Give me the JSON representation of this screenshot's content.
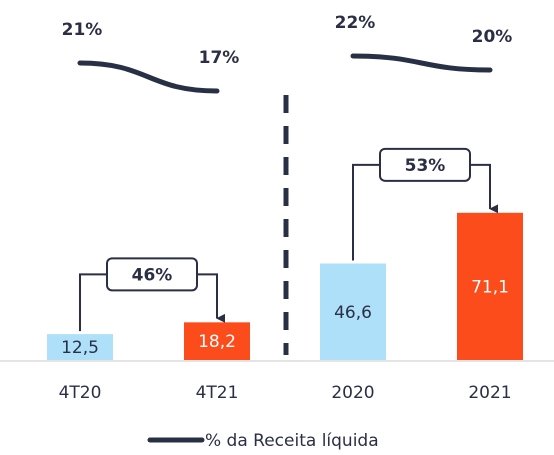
{
  "chart_data": {
    "type": "bar",
    "categories": [
      "4T20",
      "4T21",
      "2020",
      "2021"
    ],
    "ylim": [
      0,
      100
    ],
    "y2lim": [
      10,
      25
    ],
    "series": [
      {
        "type": "bar",
        "colors": [
          "#aee0fa",
          "#fc4c1c",
          "#aee0fa",
          "#fc4c1c"
        ],
        "label_colors": [
          "#2a2f45",
          "#ffffff",
          "#2a2f45",
          "#ffffff"
        ],
        "values": [
          12.5,
          18.2,
          46.6,
          71.1
        ],
        "value_labels": [
          "12,5",
          "18,2",
          "46,6",
          "71,1"
        ]
      },
      {
        "type": "line",
        "name": "% da Receita líquida",
        "axis": "y2",
        "color": "#283046",
        "values": [
          21,
          17,
          22,
          20
        ],
        "value_labels": [
          "21%",
          "17%",
          "22%",
          "20%"
        ]
      }
    ],
    "annotations": [
      "46%",
      "53%"
    ]
  }
}
